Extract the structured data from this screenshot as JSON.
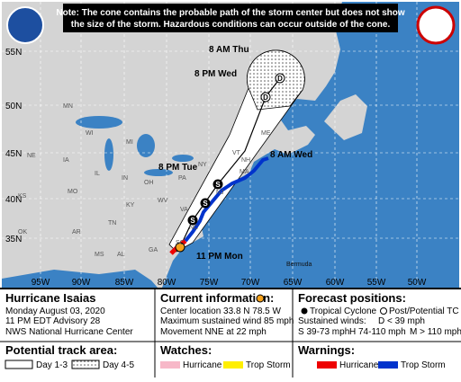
{
  "header": {
    "note": [
      "Note: The cone contains the probable path of the storm center but does not show",
      "the size of the storm. Hazardous conditions can occur outside of the cone."
    ]
  },
  "map": {
    "latitudes": [
      "55N",
      "50N",
      "45N",
      "40N",
      "35N"
    ],
    "longitudes": [
      "95W",
      "90W",
      "85W",
      "80W",
      "75W",
      "70W",
      "65W",
      "60W",
      "55W",
      "50W"
    ],
    "forecast_times": [
      "8 AM Thu",
      "8 PM Wed",
      "8 AM Wed",
      "8 PM Tue",
      "11 PM Mon"
    ],
    "markers": [
      "D",
      "D",
      "S",
      "S",
      "S"
    ],
    "states": [
      "MN",
      "WI",
      "MI",
      "IA",
      "IL",
      "IN",
      "OH",
      "PA",
      "NY",
      "VT",
      "NH",
      "ME",
      "MA",
      "NJ",
      "VA",
      "WV",
      "KY",
      "TN",
      "NC",
      "SC",
      "GA",
      "AL",
      "MS",
      "AR",
      "MO",
      "KS",
      "NE",
      "OK"
    ],
    "places": [
      "Bermuda"
    ]
  },
  "info": {
    "storm": {
      "name": "Hurricane Isaias",
      "date": "Monday August 03, 2020",
      "advisory": "11 PM EDT Advisory 28",
      "office": "NWS National Hurricane Center"
    },
    "current": {
      "title": "Current information:",
      "lines": [
        "Center location 33.8 N 78.5 W",
        "Maximum sustained wind 85 mph",
        "Movement NNE at 22 mph"
      ]
    },
    "forecast": {
      "title": "Forecast positions:",
      "tropical": "Tropical Cyclone",
      "post": "Post/Potential TC",
      "winds_title": "Sustained winds:",
      "d": "D < 39 mph",
      "s": "S 39-73 mph",
      "h": "H 74-110 mph",
      "m": "M > 110 mph"
    },
    "track": {
      "title": "Potential track area:",
      "day13": "Day 1-3",
      "day45": "Day 4-5"
    },
    "watches": {
      "title": "Watches:",
      "hurricane": "Hurricane",
      "storm": "Trop Storm"
    },
    "warnings": {
      "title": "Warnings:",
      "hurricane": "Hurricane",
      "storm": "Trop Storm"
    }
  }
}
